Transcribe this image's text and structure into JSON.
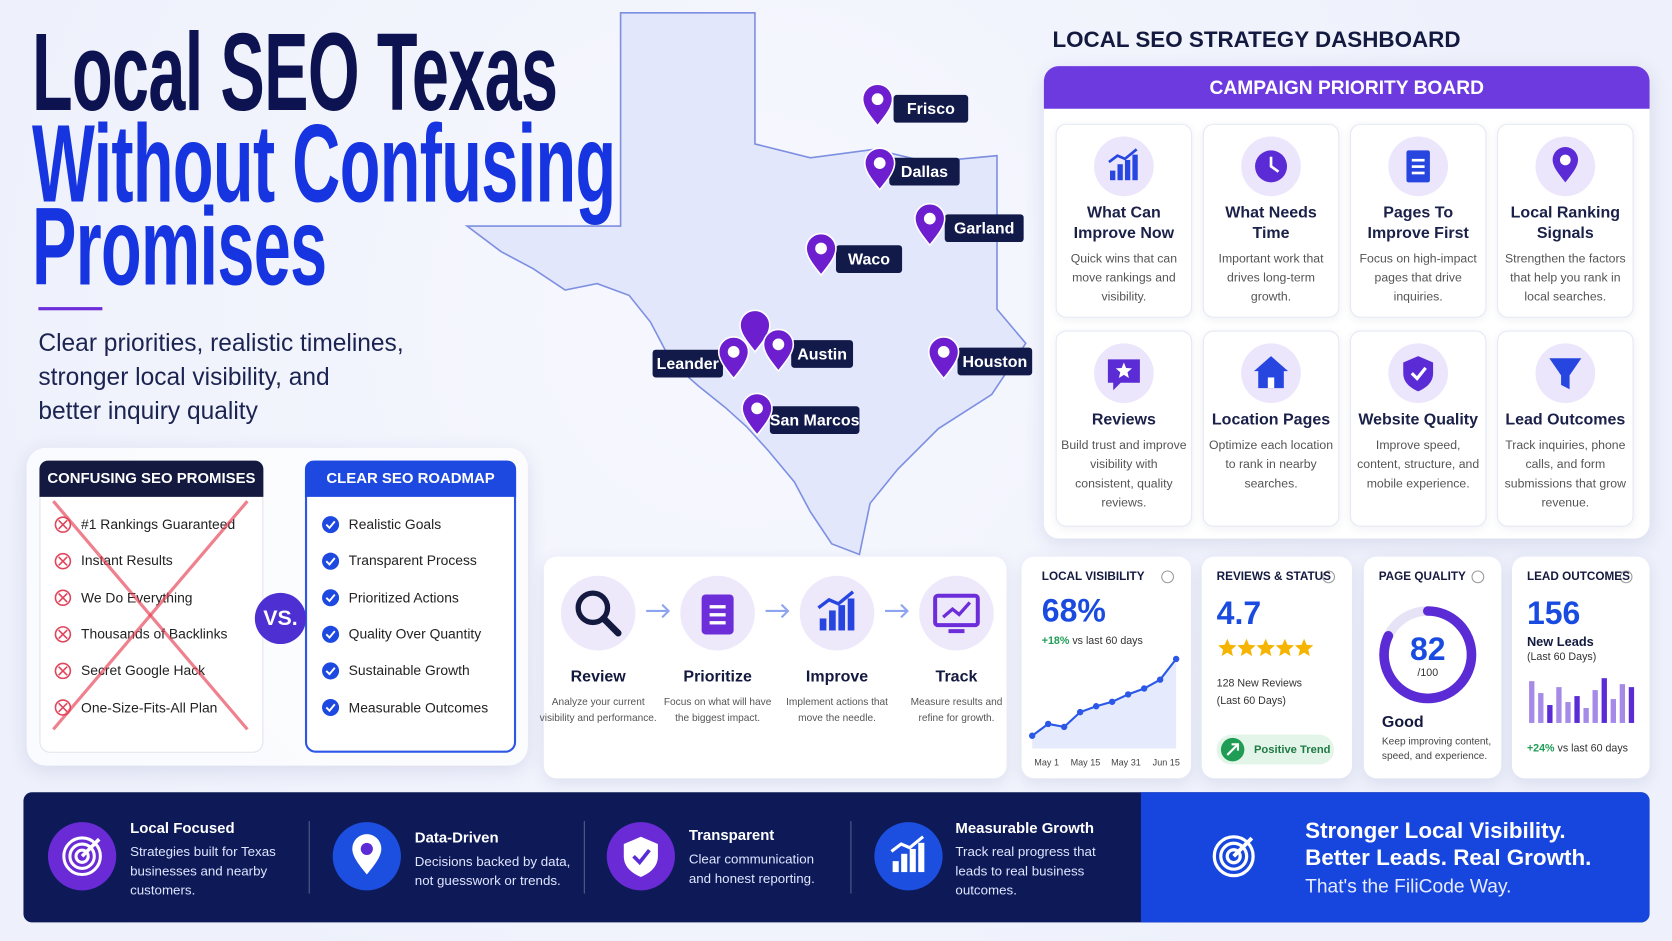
{
  "header": {
    "title_lines": [
      "Local SEO Texas",
      "Without Confusing",
      "Promises"
    ],
    "subtitle_lines": [
      "Clear priorities, realistic timelines,",
      "stronger local visibility, and",
      "better inquiry quality"
    ]
  },
  "comparison": {
    "left": {
      "title": "CONFUSING SEO PROMISES",
      "items": [
        "#1 Rankings Guaranteed",
        "Instant Results",
        "We Do Everything",
        "Thousands of Backlinks",
        "Secret Google Hack",
        "One-Size-Fits-All Plan"
      ]
    },
    "vs": "VS.",
    "right": {
      "title": "CLEAR SEO ROADMAP",
      "items": [
        "Realistic Goals",
        "Transparent Process",
        "Prioritized Actions",
        "Quality Over Quantity",
        "Sustainable Growth",
        "Measurable Outcomes"
      ]
    }
  },
  "map": {
    "cities": [
      "Frisco",
      "Dallas",
      "Garland",
      "Waco",
      "Austin",
      "Leander",
      "Houston",
      "San Marcos"
    ]
  },
  "dashboard": {
    "title": "LOCAL SEO STRATEGY DASHBOARD",
    "board_title": "CAMPAIGN PRIORITY BOARD",
    "cards": [
      {
        "title": "What Can Improve Now",
        "description": "Quick wins that can move rankings and visibility."
      },
      {
        "title": "What Needs Time",
        "description": "Important work that drives long-term growth."
      },
      {
        "title": "Pages To Improve First",
        "description": "Focus on high-impact pages that drive inquiries."
      },
      {
        "title": "Local Ranking Signals",
        "description": "Strengthen the factors that help you rank in local searches."
      },
      {
        "title": "Reviews",
        "description": "Build trust and improve visibility with consistent, quality reviews."
      },
      {
        "title": "Location Pages",
        "description": "Optimize each location to rank in nearby searches."
      },
      {
        "title": "Website Quality",
        "description": "Improve speed, content, structure, and mobile experience."
      },
      {
        "title": "Lead Outcomes",
        "description": "Track inquiries, phone calls, and form submissions that grow revenue."
      }
    ]
  },
  "process": {
    "steps": [
      {
        "title": "Review",
        "description": "Analyze your current visibility and performance."
      },
      {
        "title": "Prioritize",
        "description": "Focus on what will have the biggest impact."
      },
      {
        "title": "Improve",
        "description": "Implement actions that move the needle."
      },
      {
        "title": "Track",
        "description": "Measure results and refine for growth."
      }
    ]
  },
  "metrics": {
    "visibility": {
      "label": "LOCAL VISIBILITY",
      "value": "68%",
      "change": "+18%",
      "change_note": "vs last 60 days",
      "trend": [
        10,
        18,
        16,
        26,
        30,
        33,
        38,
        42,
        48,
        62
      ],
      "dates": [
        "May 1",
        "May 15",
        "May 31",
        "Jun 15"
      ]
    },
    "reviews": {
      "label": "REVIEWS & STATUS",
      "rating": 4.7,
      "count_note": "128 New Reviews",
      "period": "(Last 60 Days)",
      "badge": "Positive Trend"
    },
    "quality": {
      "label": "PAGE QUALITY",
      "score": 82,
      "score_max": {
        "value": 100,
        "label": "/100"
      },
      "grade": "Good",
      "note": "Keep improving content, speed, and experience."
    },
    "leads": {
      "label": "LEAD OUTCOMES",
      "value": 156,
      "unit": "New Leads",
      "period": "(Last 60 Days)",
      "bars": [
        28,
        20,
        12,
        24,
        14,
        18,
        10,
        22,
        30,
        16,
        26,
        24
      ],
      "change": "+24%",
      "change_note": "vs last 60 days"
    }
  },
  "features": [
    {
      "title": "Local Focused",
      "description": "Strategies built for Texas businesses and nearby customers."
    },
    {
      "title": "Data-Driven",
      "description": "Decisions backed by data, not guesswork or trends."
    },
    {
      "title": "Transparent",
      "description": "Clear communication and honest reporting."
    },
    {
      "title": "Measurable Growth",
      "description": "Track real progress that leads to real business outcomes."
    }
  ],
  "closing": {
    "lines": [
      "Stronger Local Visibility.",
      "Better Leads. Real Growth."
    ],
    "tagline": "That's the FiliCode Way."
  }
}
